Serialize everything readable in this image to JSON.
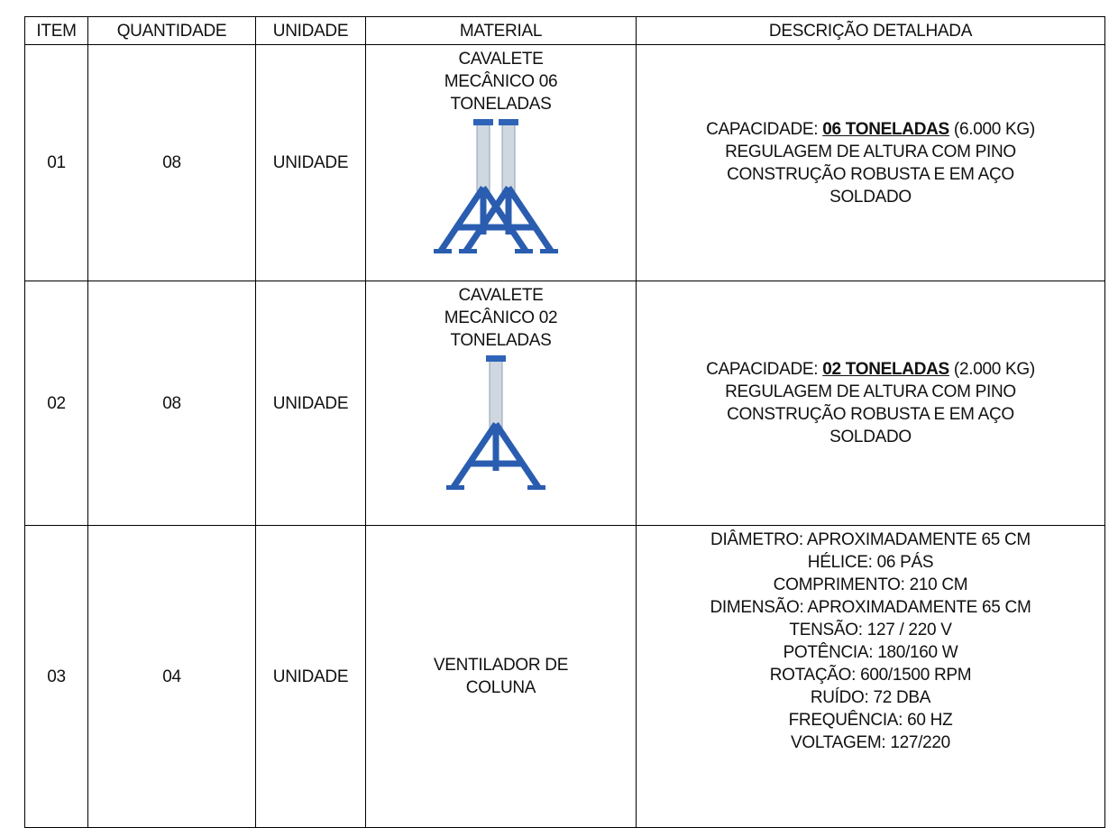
{
  "table": {
    "headers": [
      "ITEM",
      "QUANTIDADE",
      "UNIDADE",
      "MATERIAL",
      "DESCRIÇÃO DETALHADA"
    ],
    "rows": [
      {
        "item": "01",
        "quantidade": "08",
        "unidade": "UNIDADE",
        "material": [
          "CAVALETE",
          "MECÂNICO 06",
          "TONELADAS"
        ],
        "capacidade": {
          "label": "CAPACIDADE:",
          "emphasis": "06 TONELADAS",
          "note": "(6.000 KG)"
        },
        "descricao": [
          "REGULAGEM DE ALTURA COM PINO",
          "CONSTRUÇÃO ROBUSTA E EM AÇO",
          "SOLDADO"
        ]
      },
      {
        "item": "02",
        "quantidade": "08",
        "unidade": "UNIDADE",
        "material": [
          "CAVALETE",
          "MECÂNICO 02",
          "TONELADAS"
        ],
        "capacidade": {
          "label": "CAPACIDADE:",
          "emphasis": "02 TONELADAS",
          "note": "(2.000 KG)"
        },
        "descricao": [
          "REGULAGEM DE ALTURA COM PINO",
          "CONSTRUÇÃO ROBUSTA E EM AÇO",
          "SOLDADO"
        ]
      },
      {
        "item": "03",
        "quantidade": "04",
        "unidade": "UNIDADE",
        "material": [
          "VENTILADOR DE",
          "COLUNA"
        ],
        "descricao": [
          "DIÂMETRO: APROXIMADAMENTE 65 CM",
          "HÉLICE: 06 PÁS",
          "COMPRIMENTO: 210 CM",
          "DIMENSÃO: APROXIMADAMENTE 65 CM",
          "TENSÃO: 127 / 220 V",
          "POTÊNCIA: 180/160 W",
          "ROTAÇÃO: 600/1500 RPM",
          "RUÍDO: 72 DBA",
          "FREQUÊNCIA: 60 HZ",
          "VOLTAGEM: 127/220"
        ]
      }
    ]
  }
}
